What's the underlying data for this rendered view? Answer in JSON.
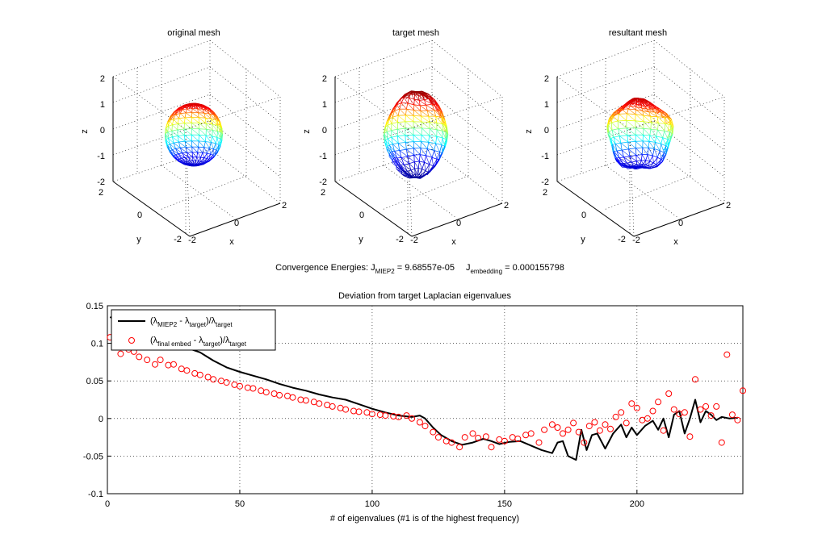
{
  "figure": {
    "convergence": {
      "prefix": "Convergence Energies: J",
      "sub1": "MIEP2",
      "val1": " = 9.68557e-05",
      "j2": "J",
      "sub2": "embedding",
      "val2": " = 0.000155798"
    }
  },
  "meshes": [
    {
      "title": "original mesh",
      "shape": "sphere"
    },
    {
      "title": "target mesh",
      "shape": "lobed"
    },
    {
      "title": "resultant mesh",
      "shape": "bumpy"
    }
  ],
  "mesh_axes": {
    "z_ticks": [
      "2",
      "1",
      "0",
      "-1",
      "-2"
    ],
    "y_ticks": [
      "2",
      "0",
      "-2"
    ],
    "x_ticks": [
      "-2",
      "0",
      "2"
    ],
    "xlabel": "x",
    "ylabel": "y",
    "zlabel": "z"
  },
  "colors": {
    "series1": "#000000",
    "series2": "#ff0000",
    "jet": [
      "#00008f",
      "#0000ff",
      "#00ffff",
      "#ffff00",
      "#ff0000",
      "#800000"
    ]
  },
  "chart_data": {
    "type": "line",
    "title": "Deviation from target Laplacian eigenvalues",
    "xlabel": "# of eigenvalues (#1 is of the highest frequency)",
    "ylabel": "",
    "xlim": [
      0,
      240
    ],
    "ylim": [
      -0.1,
      0.15
    ],
    "x_ticks": [
      0,
      50,
      100,
      150,
      200
    ],
    "y_ticks": [
      -0.1,
      -0.05,
      0,
      0.05,
      0.1,
      0.15
    ],
    "y_tick_labels": [
      "-0.1",
      "-0.05",
      "0",
      "0.05",
      "0.1",
      "0.15"
    ],
    "grid": true,
    "legend_position": "top-left",
    "series": [
      {
        "name": "(λMIEP2 - λtarget)/λtarget",
        "legend": {
          "open": "(λ",
          "sub1": "MIEP2",
          "mid": " - λ",
          "sub2": "target",
          "close": ")/λ",
          "sub3": "target"
        },
        "style": "line",
        "points": [
          [
            1,
            0.135
          ],
          [
            5,
            0.128
          ],
          [
            10,
            0.118
          ],
          [
            15,
            0.11
          ],
          [
            20,
            0.104
          ],
          [
            25,
            0.098
          ],
          [
            30,
            0.094
          ],
          [
            35,
            0.088
          ],
          [
            40,
            0.077
          ],
          [
            45,
            0.068
          ],
          [
            50,
            0.062
          ],
          [
            55,
            0.057
          ],
          [
            60,
            0.052
          ],
          [
            65,
            0.046
          ],
          [
            70,
            0.041
          ],
          [
            75,
            0.037
          ],
          [
            80,
            0.032
          ],
          [
            85,
            0.028
          ],
          [
            90,
            0.025
          ],
          [
            95,
            0.019
          ],
          [
            100,
            0.013
          ],
          [
            105,
            0.008
          ],
          [
            110,
            0.004
          ],
          [
            115,
            0.002
          ],
          [
            118,
            0.004
          ],
          [
            120,
            0.0
          ],
          [
            123,
            -0.012
          ],
          [
            126,
            -0.022
          ],
          [
            130,
            -0.03
          ],
          [
            134,
            -0.035
          ],
          [
            138,
            -0.032
          ],
          [
            142,
            -0.027
          ],
          [
            145,
            -0.03
          ],
          [
            148,
            -0.034
          ],
          [
            152,
            -0.031
          ],
          [
            156,
            -0.03
          ],
          [
            160,
            -0.036
          ],
          [
            164,
            -0.042
          ],
          [
            168,
            -0.046
          ],
          [
            170,
            -0.032
          ],
          [
            172,
            -0.03
          ],
          [
            174,
            -0.05
          ],
          [
            177,
            -0.055
          ],
          [
            179,
            -0.015
          ],
          [
            181,
            -0.042
          ],
          [
            183,
            -0.022
          ],
          [
            185,
            -0.02
          ],
          [
            188,
            -0.04
          ],
          [
            191,
            -0.02
          ],
          [
            194,
            -0.008
          ],
          [
            196,
            -0.025
          ],
          [
            198,
            -0.012
          ],
          [
            200,
            -0.022
          ],
          [
            203,
            -0.01
          ],
          [
            206,
            -0.003
          ],
          [
            208,
            -0.015
          ],
          [
            210,
            0.0
          ],
          [
            212,
            -0.025
          ],
          [
            214,
            0.005
          ],
          [
            216,
            0.01
          ],
          [
            218,
            -0.02
          ],
          [
            220,
            0.0
          ],
          [
            222,
            0.025
          ],
          [
            224,
            -0.005
          ],
          [
            226,
            0.01
          ],
          [
            228,
            0.005
          ],
          [
            230,
            -0.002
          ],
          [
            232,
            0.002
          ],
          [
            235,
            0.0
          ],
          [
            238,
            0.001
          ]
        ]
      },
      {
        "name": "(λfinal embed - λtarget)/λtarget",
        "legend": {
          "open": "(λ",
          "sub1": "final embed",
          "mid": " - λ",
          "sub2": "target",
          "close": ")/λ",
          "sub3": "target"
        },
        "style": "markers",
        "points": [
          [
            1,
            0.108
          ],
          [
            3,
            0.106
          ],
          [
            5,
            0.086
          ],
          [
            8,
            0.092
          ],
          [
            10,
            0.089
          ],
          [
            12,
            0.082
          ],
          [
            15,
            0.078
          ],
          [
            18,
            0.072
          ],
          [
            20,
            0.078
          ],
          [
            23,
            0.071
          ],
          [
            25,
            0.072
          ],
          [
            28,
            0.066
          ],
          [
            30,
            0.064
          ],
          [
            33,
            0.06
          ],
          [
            35,
            0.058
          ],
          [
            38,
            0.055
          ],
          [
            40,
            0.052
          ],
          [
            43,
            0.05
          ],
          [
            45,
            0.048
          ],
          [
            48,
            0.045
          ],
          [
            50,
            0.043
          ],
          [
            53,
            0.041
          ],
          [
            55,
            0.04
          ],
          [
            58,
            0.037
          ],
          [
            60,
            0.035
          ],
          [
            63,
            0.033
          ],
          [
            65,
            0.031
          ],
          [
            68,
            0.03
          ],
          [
            70,
            0.028
          ],
          [
            73,
            0.025
          ],
          [
            75,
            0.024
          ],
          [
            78,
            0.022
          ],
          [
            80,
            0.02
          ],
          [
            83,
            0.018
          ],
          [
            85,
            0.016
          ],
          [
            88,
            0.014
          ],
          [
            90,
            0.012
          ],
          [
            93,
            0.01
          ],
          [
            95,
            0.009
          ],
          [
            98,
            0.008
          ],
          [
            100,
            0.006
          ],
          [
            103,
            0.005
          ],
          [
            105,
            0.004
          ],
          [
            108,
            0.003
          ],
          [
            110,
            0.002
          ],
          [
            113,
            0.004
          ],
          [
            115,
            0.0
          ],
          [
            118,
            -0.005
          ],
          [
            120,
            -0.01
          ],
          [
            123,
            -0.018
          ],
          [
            125,
            -0.025
          ],
          [
            128,
            -0.03
          ],
          [
            130,
            -0.032
          ],
          [
            133,
            -0.038
          ],
          [
            135,
            -0.025
          ],
          [
            138,
            -0.02
          ],
          [
            140,
            -0.026
          ],
          [
            143,
            -0.024
          ],
          [
            145,
            -0.038
          ],
          [
            148,
            -0.028
          ],
          [
            150,
            -0.03
          ],
          [
            153,
            -0.025
          ],
          [
            155,
            -0.027
          ],
          [
            158,
            -0.022
          ],
          [
            160,
            -0.02
          ],
          [
            163,
            -0.032
          ],
          [
            165,
            -0.015
          ],
          [
            168,
            -0.008
          ],
          [
            170,
            -0.012
          ],
          [
            172,
            -0.02
          ],
          [
            174,
            -0.015
          ],
          [
            176,
            -0.006
          ],
          [
            178,
            -0.018
          ],
          [
            180,
            -0.032
          ],
          [
            182,
            -0.01
          ],
          [
            184,
            -0.005
          ],
          [
            186,
            -0.016
          ],
          [
            188,
            -0.008
          ],
          [
            190,
            -0.014
          ],
          [
            192,
            0.002
          ],
          [
            194,
            0.008
          ],
          [
            196,
            -0.006
          ],
          [
            198,
            0.02
          ],
          [
            200,
            0.014
          ],
          [
            202,
            -0.002
          ],
          [
            204,
            0.0
          ],
          [
            206,
            0.01
          ],
          [
            208,
            0.022
          ],
          [
            210,
            -0.016
          ],
          [
            212,
            0.033
          ],
          [
            214,
            0.012
          ],
          [
            216,
            0.006
          ],
          [
            218,
            0.008
          ],
          [
            220,
            -0.024
          ],
          [
            222,
            0.052
          ],
          [
            224,
            0.012
          ],
          [
            226,
            0.016
          ],
          [
            228,
            0.004
          ],
          [
            230,
            0.016
          ],
          [
            232,
            -0.032
          ],
          [
            234,
            0.085
          ],
          [
            236,
            0.005
          ],
          [
            238,
            -0.002
          ],
          [
            240,
            0.037
          ]
        ]
      }
    ]
  }
}
